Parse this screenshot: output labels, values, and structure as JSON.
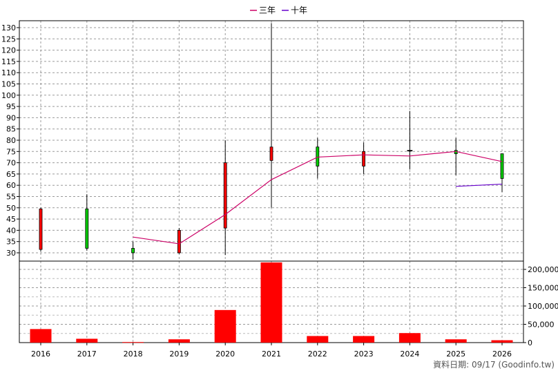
{
  "chart_data": {
    "type": "candlestick-bar-combo",
    "title": "",
    "legend": {
      "placement": "top-center",
      "entries": [
        {
          "name": "三年",
          "color": "#cc0066"
        },
        {
          "name": "十年",
          "color": "#6600cc"
        }
      ]
    },
    "categories": [
      "2016",
      "2017",
      "2018",
      "2019",
      "2020",
      "2021",
      "2022",
      "2023",
      "2024",
      "2025",
      "2026"
    ],
    "price_axis": {
      "ylim": [
        25,
        133
      ],
      "ticks": [
        30,
        35,
        40,
        45,
        50,
        55,
        60,
        65,
        70,
        75,
        80,
        85,
        90,
        95,
        100,
        105,
        110,
        115,
        120,
        125,
        130
      ],
      "grid": true
    },
    "candles": [
      {
        "year": "2016",
        "open": 49.5,
        "close": 31.5,
        "high": 50,
        "low": 30.5,
        "color": "red"
      },
      {
        "year": "2017",
        "open": 32,
        "close": 49.5,
        "high": 56,
        "low": 31,
        "color": "green"
      },
      {
        "year": "2018",
        "open": 30,
        "close": 32,
        "high": 35,
        "low": 27,
        "color": "green"
      },
      {
        "year": "2019",
        "open": 40,
        "close": 30,
        "high": 41,
        "low": 29.5,
        "color": "red"
      },
      {
        "year": "2020",
        "open": 41,
        "close": 70,
        "high": 80,
        "low": 29,
        "color": "red"
      },
      {
        "year": "2021",
        "open": 77,
        "close": 71,
        "high": 132,
        "low": 50,
        "color": "red"
      },
      {
        "year": "2022",
        "open": 68.5,
        "close": 77,
        "high": 81,
        "low": 63,
        "color": "green"
      },
      {
        "year": "2023",
        "open": 75,
        "close": 68.5,
        "high": 79,
        "low": 65,
        "color": "red"
      },
      {
        "year": "2024",
        "open": 75.5,
        "close": 75.2,
        "high": 93,
        "low": 67,
        "color": "black"
      },
      {
        "year": "2025",
        "open": 74,
        "close": 75.5,
        "high": 81,
        "low": 64.5,
        "color": "green"
      },
      {
        "year": "2026",
        "open": 63,
        "close": 74,
        "high": 74,
        "low": 57,
        "color": "green"
      }
    ],
    "series": [
      {
        "name": "三年",
        "color": "#cc0066",
        "points": [
          [
            "2018",
            37
          ],
          [
            "2019",
            34
          ],
          [
            "2020",
            47
          ],
          [
            "2021",
            62.5
          ],
          [
            "2022",
            72.5
          ],
          [
            "2023",
            73.5
          ],
          [
            "2024",
            73
          ],
          [
            "2025",
            75
          ],
          [
            "2026",
            70.5
          ]
        ]
      },
      {
        "name": "十年",
        "color": "#6600cc",
        "points": [
          [
            "2025",
            59.5
          ],
          [
            "2026",
            60.5
          ]
        ]
      }
    ],
    "volume_axis": {
      "ylim": [
        0,
        225000
      ],
      "ticks": [
        0,
        50000,
        100000,
        150000,
        200000
      ],
      "tick_labels": [
        "0",
        "50,000",
        "100,000",
        "150,000",
        "200,000"
      ],
      "grid": true
    },
    "volume_bars": [
      {
        "year": "2016",
        "value": 37000
      },
      {
        "year": "2017",
        "value": 10500
      },
      {
        "year": "2018",
        "value": 1500
      },
      {
        "year": "2019",
        "value": 9000
      },
      {
        "year": "2020",
        "value": 89000
      },
      {
        "year": "2021",
        "value": 219000
      },
      {
        "year": "2022",
        "value": 18000
      },
      {
        "year": "2023",
        "value": 18000
      },
      {
        "year": "2024",
        "value": 26000
      },
      {
        "year": "2025",
        "value": 9000
      },
      {
        "year": "2026",
        "value": 6500
      }
    ],
    "bar_color": "#ff0000"
  },
  "footer_text": "資料日期: 09/17  (Goodinfo.tw)"
}
